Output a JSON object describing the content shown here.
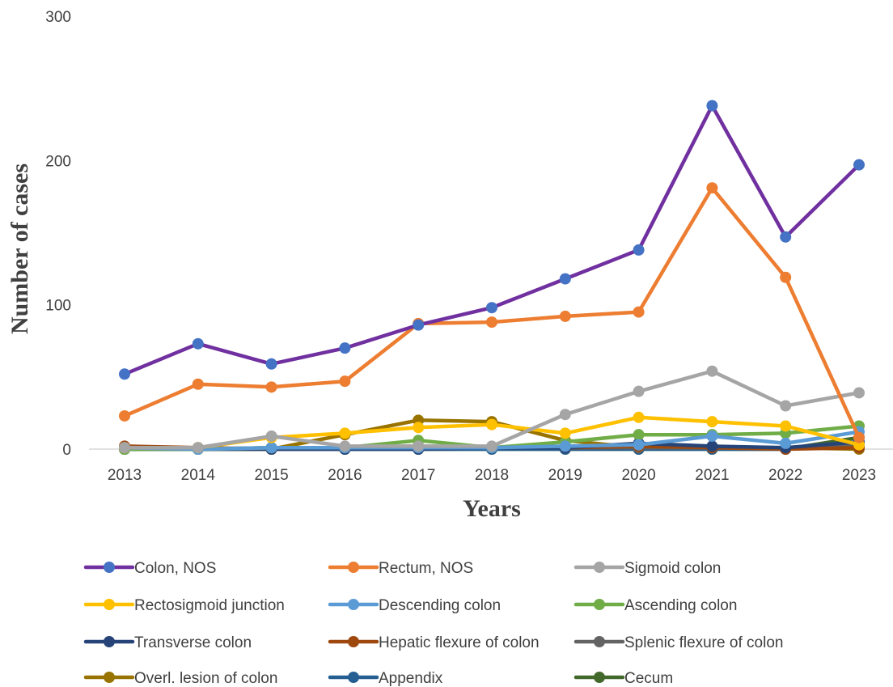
{
  "chart_data": {
    "type": "line",
    "title": "",
    "xlabel": "Years",
    "ylabel": "Number of cases",
    "x": [
      "2013",
      "2014",
      "2015",
      "2016",
      "2017",
      "2018",
      "2019",
      "2020",
      "2021",
      "2022",
      "2023"
    ],
    "ylim": [
      0,
      300
    ],
    "yticks": [
      "0",
      "100",
      "200",
      "300"
    ],
    "grid": false,
    "legend_position": "bottom",
    "series": [
      {
        "name": "Colon, NOS",
        "line_color": "#7030A0",
        "marker_color": "#4472C4",
        "values": [
          52,
          73,
          59,
          70,
          86,
          98,
          118,
          138,
          238,
          147,
          197
        ]
      },
      {
        "name": "Rectum, NOS",
        "line_color": "#ED7D31",
        "marker_color": "#ED7D31",
        "values": [
          23,
          45,
          43,
          47,
          87,
          88,
          92,
          95,
          181,
          119,
          8
        ]
      },
      {
        "name": "Sigmoid colon",
        "line_color": "#A5A5A5",
        "marker_color": "#A5A5A5",
        "values": [
          1,
          1,
          9,
          2,
          2,
          2,
          24,
          40,
          54,
          30,
          39
        ]
      },
      {
        "name": "Rectosigmoid junction",
        "line_color": "#FFC000",
        "marker_color": "#FFC000",
        "values": [
          1,
          1,
          8,
          11,
          15,
          17,
          11,
          22,
          19,
          16,
          3
        ]
      },
      {
        "name": "Descending colon",
        "line_color": "#5B9BD5",
        "marker_color": "#5B9BD5",
        "values": [
          1,
          0,
          1,
          1,
          1,
          1,
          2,
          3,
          9,
          4,
          12
        ]
      },
      {
        "name": "Ascending colon",
        "line_color": "#70AD47",
        "marker_color": "#70AD47",
        "values": [
          0,
          0,
          1,
          1,
          6,
          1,
          5,
          10,
          10,
          11,
          16
        ]
      },
      {
        "name": "Transverse colon",
        "line_color": "#264478",
        "marker_color": "#264478",
        "values": [
          0,
          0,
          0,
          0,
          0,
          1,
          1,
          4,
          2,
          1,
          5
        ]
      },
      {
        "name": "Hepatic flexure of colon",
        "line_color": "#9E480E",
        "marker_color": "#9E480E",
        "values": [
          2,
          1,
          0,
          1,
          2,
          1,
          1,
          2,
          1,
          0,
          1
        ]
      },
      {
        "name": "Splenic flexure of colon",
        "line_color": "#636363",
        "marker_color": "#636363",
        "values": [
          0,
          0,
          1,
          1,
          1,
          1,
          1,
          1,
          1,
          1,
          3
        ]
      },
      {
        "name": "Overl. lesion of colon",
        "line_color": "#997300",
        "marker_color": "#997300",
        "values": [
          0,
          0,
          0,
          10,
          20,
          19,
          6,
          1,
          1,
          1,
          0
        ]
      },
      {
        "name": "Appendix",
        "line_color": "#255E91",
        "marker_color": "#255E91",
        "values": [
          0,
          0,
          0,
          0,
          0,
          0,
          0,
          0,
          0,
          0,
          2
        ]
      },
      {
        "name": "Cecum",
        "line_color": "#43682B",
        "marker_color": "#43682B",
        "values": [
          0,
          0,
          0,
          0,
          0,
          0,
          0,
          0,
          0,
          0,
          8
        ]
      }
    ]
  }
}
